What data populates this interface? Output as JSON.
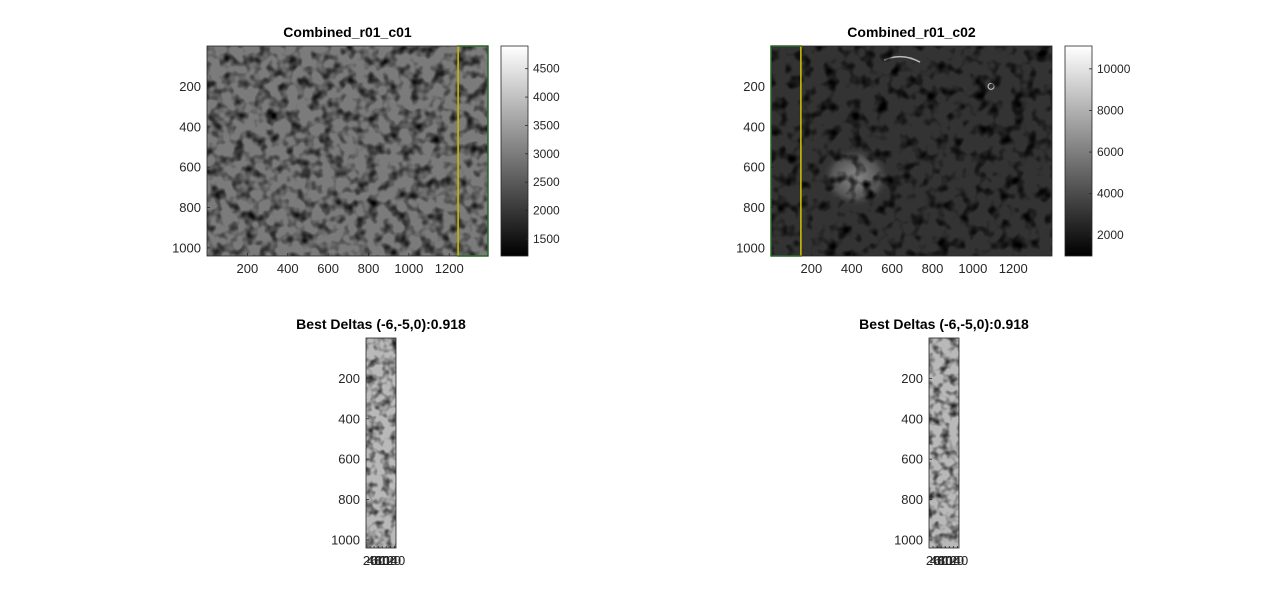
{
  "colors": {
    "background": "#ffffff",
    "axis": "#262626",
    "overlap_box_green": "#2db52d",
    "overlap_box_yellow": "#d4b300",
    "image_grey_left": "#7b7b7b",
    "image_grey_right": "#333333",
    "strip_grey": "#b9b9b9"
  },
  "chart_data": [
    {
      "type": "heatmap",
      "title": "Combined_r01_c01",
      "xlabel": "",
      "ylabel": "",
      "xlim": [
        0,
        1392
      ],
      "ylim": [
        0,
        1040
      ],
      "y_reversed": true,
      "x_ticks": [
        200,
        400,
        600,
        800,
        1000,
        1200
      ],
      "y_ticks": [
        200,
        400,
        600,
        800,
        1000
      ],
      "colormap": "gray",
      "colorbar": {
        "clim": [
          1200,
          4900
        ],
        "ticks": [
          1500,
          2000,
          2500,
          3000,
          3500,
          4000,
          4500
        ]
      },
      "overlap_box": {
        "x": [
          1244,
          1392
        ],
        "y": [
          0,
          1040
        ]
      }
    },
    {
      "type": "heatmap",
      "title": "Combined_r01_c02",
      "xlabel": "",
      "ylabel": "",
      "xlim": [
        0,
        1392
      ],
      "ylim": [
        0,
        1040
      ],
      "y_reversed": true,
      "x_ticks": [
        200,
        400,
        600,
        800,
        1000,
        1200
      ],
      "y_ticks": [
        200,
        400,
        600,
        800,
        1000
      ],
      "colormap": "gray",
      "colorbar": {
        "clim": [
          1000,
          11100
        ],
        "ticks": [
          2000,
          4000,
          6000,
          8000,
          10000
        ]
      },
      "overlap_box": {
        "x": [
          0,
          148
        ],
        "y": [
          0,
          1040
        ]
      }
    },
    {
      "type": "heatmap",
      "title": "Best Deltas (-6,-5,0):0.918",
      "xlabel": "",
      "ylabel": "",
      "xlim": [
        0,
        148
      ],
      "ylim": [
        0,
        1040
      ],
      "y_reversed": true,
      "x_tick_labels": [
        "20",
        "40",
        "60",
        "80",
        "100",
        "120",
        "140"
      ],
      "y_ticks": [
        200,
        400,
        600,
        800,
        1000
      ],
      "colormap": "gray"
    },
    {
      "type": "heatmap",
      "title": "Best Deltas (-6,-5,0):0.918",
      "xlabel": "",
      "ylabel": "",
      "xlim": [
        0,
        148
      ],
      "ylim": [
        0,
        1040
      ],
      "y_reversed": true,
      "x_tick_labels": [
        "20",
        "40",
        "60",
        "80",
        "100",
        "120",
        "140"
      ],
      "y_ticks": [
        200,
        400,
        600,
        800,
        1000
      ],
      "colormap": "gray"
    }
  ]
}
